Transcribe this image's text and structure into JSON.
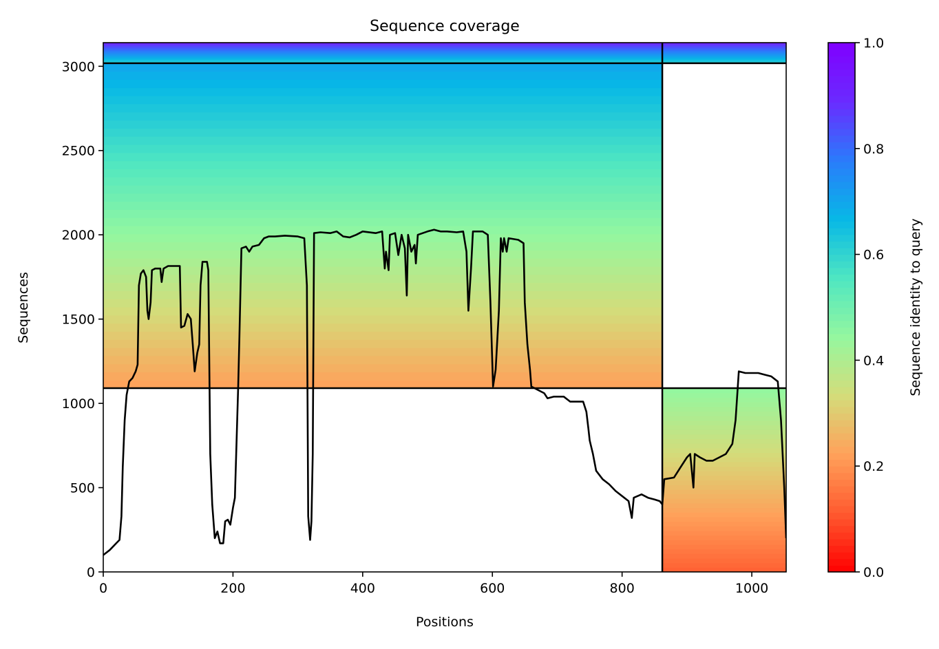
{
  "chart_data": {
    "type": "heatmap",
    "title": "Sequence coverage",
    "xlabel": "Positions",
    "ylabel": "Sequences",
    "xlim": [
      0,
      1053
    ],
    "ylim": [
      0,
      3140
    ],
    "xticks": [
      0,
      200,
      400,
      600,
      800,
      1000
    ],
    "yticks": [
      0,
      500,
      1000,
      1500,
      2000,
      2500,
      3000
    ],
    "grid": false,
    "colorbar": {
      "label": "Sequence identity to query",
      "colormap": "rainbow_r",
      "range": [
        0.0,
        1.0
      ],
      "ticks": [
        "0.0",
        "0.2",
        "0.4",
        "0.6",
        "0.8",
        "1.0"
      ],
      "colors": [
        "#ff0000",
        "#ff5a2f",
        "#ffa15a",
        "#d4dc7a",
        "#95f79f",
        "#4ee6c2",
        "#07b8e6",
        "#2a7cfb",
        "#6a2bff",
        "#8000ff"
      ]
    },
    "separator_lines": {
      "vertical_x": [
        862
      ],
      "horizontal_y": [
        1090,
        3018
      ]
    },
    "coverage_blocks": [
      {
        "x": [
          0,
          862
        ],
        "seq_range": [
          1090,
          3018
        ],
        "identity_range": [
          0.22,
          0.7
        ]
      },
      {
        "x": [
          0,
          862
        ],
        "seq_range": [
          3018,
          3140
        ],
        "identity_range": [
          0.6,
          0.9
        ]
      },
      {
        "x": [
          862,
          1053
        ],
        "seq_range": [
          3018,
          3140
        ],
        "identity_range": [
          0.6,
          0.9
        ]
      },
      {
        "x": [
          862,
          1053
        ],
        "seq_range": [
          0,
          1090
        ],
        "identity_range": [
          0.12,
          0.45
        ]
      }
    ],
    "coverage_line": {
      "name": "coverage",
      "color": "#000000",
      "points": [
        [
          0,
          100
        ],
        [
          10,
          130
        ],
        [
          20,
          170
        ],
        [
          25,
          190
        ],
        [
          28,
          330
        ],
        [
          30,
          620
        ],
        [
          33,
          900
        ],
        [
          36,
          1050
        ],
        [
          40,
          1130
        ],
        [
          45,
          1150
        ],
        [
          50,
          1190
        ],
        [
          53,
          1230
        ],
        [
          55,
          1700
        ],
        [
          58,
          1770
        ],
        [
          62,
          1790
        ],
        [
          66,
          1750
        ],
        [
          68,
          1550
        ],
        [
          70,
          1500
        ],
        [
          73,
          1600
        ],
        [
          75,
          1790
        ],
        [
          80,
          1800
        ],
        [
          88,
          1800
        ],
        [
          90,
          1720
        ],
        [
          93,
          1800
        ],
        [
          100,
          1815
        ],
        [
          110,
          1815
        ],
        [
          118,
          1815
        ],
        [
          120,
          1450
        ],
        [
          125,
          1460
        ],
        [
          130,
          1530
        ],
        [
          135,
          1500
        ],
        [
          138,
          1350
        ],
        [
          141,
          1190
        ],
        [
          145,
          1300
        ],
        [
          148,
          1350
        ],
        [
          150,
          1700
        ],
        [
          153,
          1840
        ],
        [
          160,
          1840
        ],
        [
          162,
          1790
        ],
        [
          165,
          700
        ],
        [
          168,
          400
        ],
        [
          172,
          200
        ],
        [
          176,
          240
        ],
        [
          180,
          170
        ],
        [
          185,
          170
        ],
        [
          188,
          300
        ],
        [
          192,
          310
        ],
        [
          196,
          280
        ],
        [
          200,
          380
        ],
        [
          203,
          440
        ],
        [
          205,
          700
        ],
        [
          208,
          1100
        ],
        [
          210,
          1400
        ],
        [
          213,
          1920
        ],
        [
          220,
          1930
        ],
        [
          225,
          1900
        ],
        [
          230,
          1930
        ],
        [
          240,
          1940
        ],
        [
          248,
          1980
        ],
        [
          255,
          1990
        ],
        [
          265,
          1990
        ],
        [
          280,
          1995
        ],
        [
          300,
          1990
        ],
        [
          310,
          1980
        ],
        [
          314,
          1700
        ],
        [
          316,
          330
        ],
        [
          319,
          190
        ],
        [
          321,
          300
        ],
        [
          323,
          700
        ],
        [
          325,
          2010
        ],
        [
          335,
          2015
        ],
        [
          350,
          2010
        ],
        [
          360,
          2020
        ],
        [
          370,
          1990
        ],
        [
          380,
          1985
        ],
        [
          390,
          2000
        ],
        [
          400,
          2020
        ],
        [
          420,
          2010
        ],
        [
          430,
          2020
        ],
        [
          434,
          1800
        ],
        [
          436,
          1900
        ],
        [
          440,
          1790
        ],
        [
          442,
          2000
        ],
        [
          450,
          2010
        ],
        [
          455,
          1880
        ],
        [
          460,
          2000
        ],
        [
          465,
          1920
        ],
        [
          468,
          1640
        ],
        [
          470,
          2000
        ],
        [
          475,
          1900
        ],
        [
          480,
          1940
        ],
        [
          482,
          1830
        ],
        [
          485,
          2000
        ],
        [
          500,
          2020
        ],
        [
          510,
          2030
        ],
        [
          520,
          2020
        ],
        [
          530,
          2020
        ],
        [
          545,
          2015
        ],
        [
          555,
          2020
        ],
        [
          560,
          1900
        ],
        [
          563,
          1550
        ],
        [
          567,
          1800
        ],
        [
          570,
          2020
        ],
        [
          585,
          2020
        ],
        [
          593,
          2000
        ],
        [
          597,
          1600
        ],
        [
          601,
          1100
        ],
        [
          605,
          1200
        ],
        [
          610,
          1550
        ],
        [
          613,
          1980
        ],
        [
          616,
          1900
        ],
        [
          618,
          1980
        ],
        [
          622,
          1900
        ],
        [
          625,
          1980
        ],
        [
          640,
          1970
        ],
        [
          648,
          1950
        ],
        [
          650,
          1600
        ],
        [
          654,
          1350
        ],
        [
          658,
          1200
        ],
        [
          660,
          1100
        ],
        [
          670,
          1080
        ],
        [
          680,
          1060
        ],
        [
          685,
          1030
        ],
        [
          695,
          1040
        ],
        [
          710,
          1040
        ],
        [
          720,
          1010
        ],
        [
          740,
          1010
        ],
        [
          745,
          950
        ],
        [
          748,
          850
        ],
        [
          750,
          780
        ],
        [
          755,
          700
        ],
        [
          760,
          600
        ],
        [
          770,
          550
        ],
        [
          780,
          520
        ],
        [
          790,
          480
        ],
        [
          800,
          450
        ],
        [
          810,
          420
        ],
        [
          815,
          320
        ],
        [
          818,
          440
        ],
        [
          830,
          460
        ],
        [
          840,
          440
        ],
        [
          850,
          430
        ],
        [
          858,
          420
        ],
        [
          862,
          400
        ],
        [
          865,
          550
        ],
        [
          880,
          560
        ],
        [
          890,
          620
        ],
        [
          900,
          680
        ],
        [
          905,
          700
        ],
        [
          910,
          500
        ],
        [
          912,
          700
        ],
        [
          920,
          680
        ],
        [
          930,
          660
        ],
        [
          940,
          660
        ],
        [
          950,
          680
        ],
        [
          960,
          700
        ],
        [
          970,
          760
        ],
        [
          975,
          900
        ],
        [
          980,
          1190
        ],
        [
          990,
          1180
        ],
        [
          1000,
          1180
        ],
        [
          1010,
          1180
        ],
        [
          1020,
          1170
        ],
        [
          1030,
          1160
        ],
        [
          1040,
          1130
        ],
        [
          1045,
          900
        ],
        [
          1050,
          500
        ],
        [
          1053,
          200
        ]
      ]
    }
  }
}
